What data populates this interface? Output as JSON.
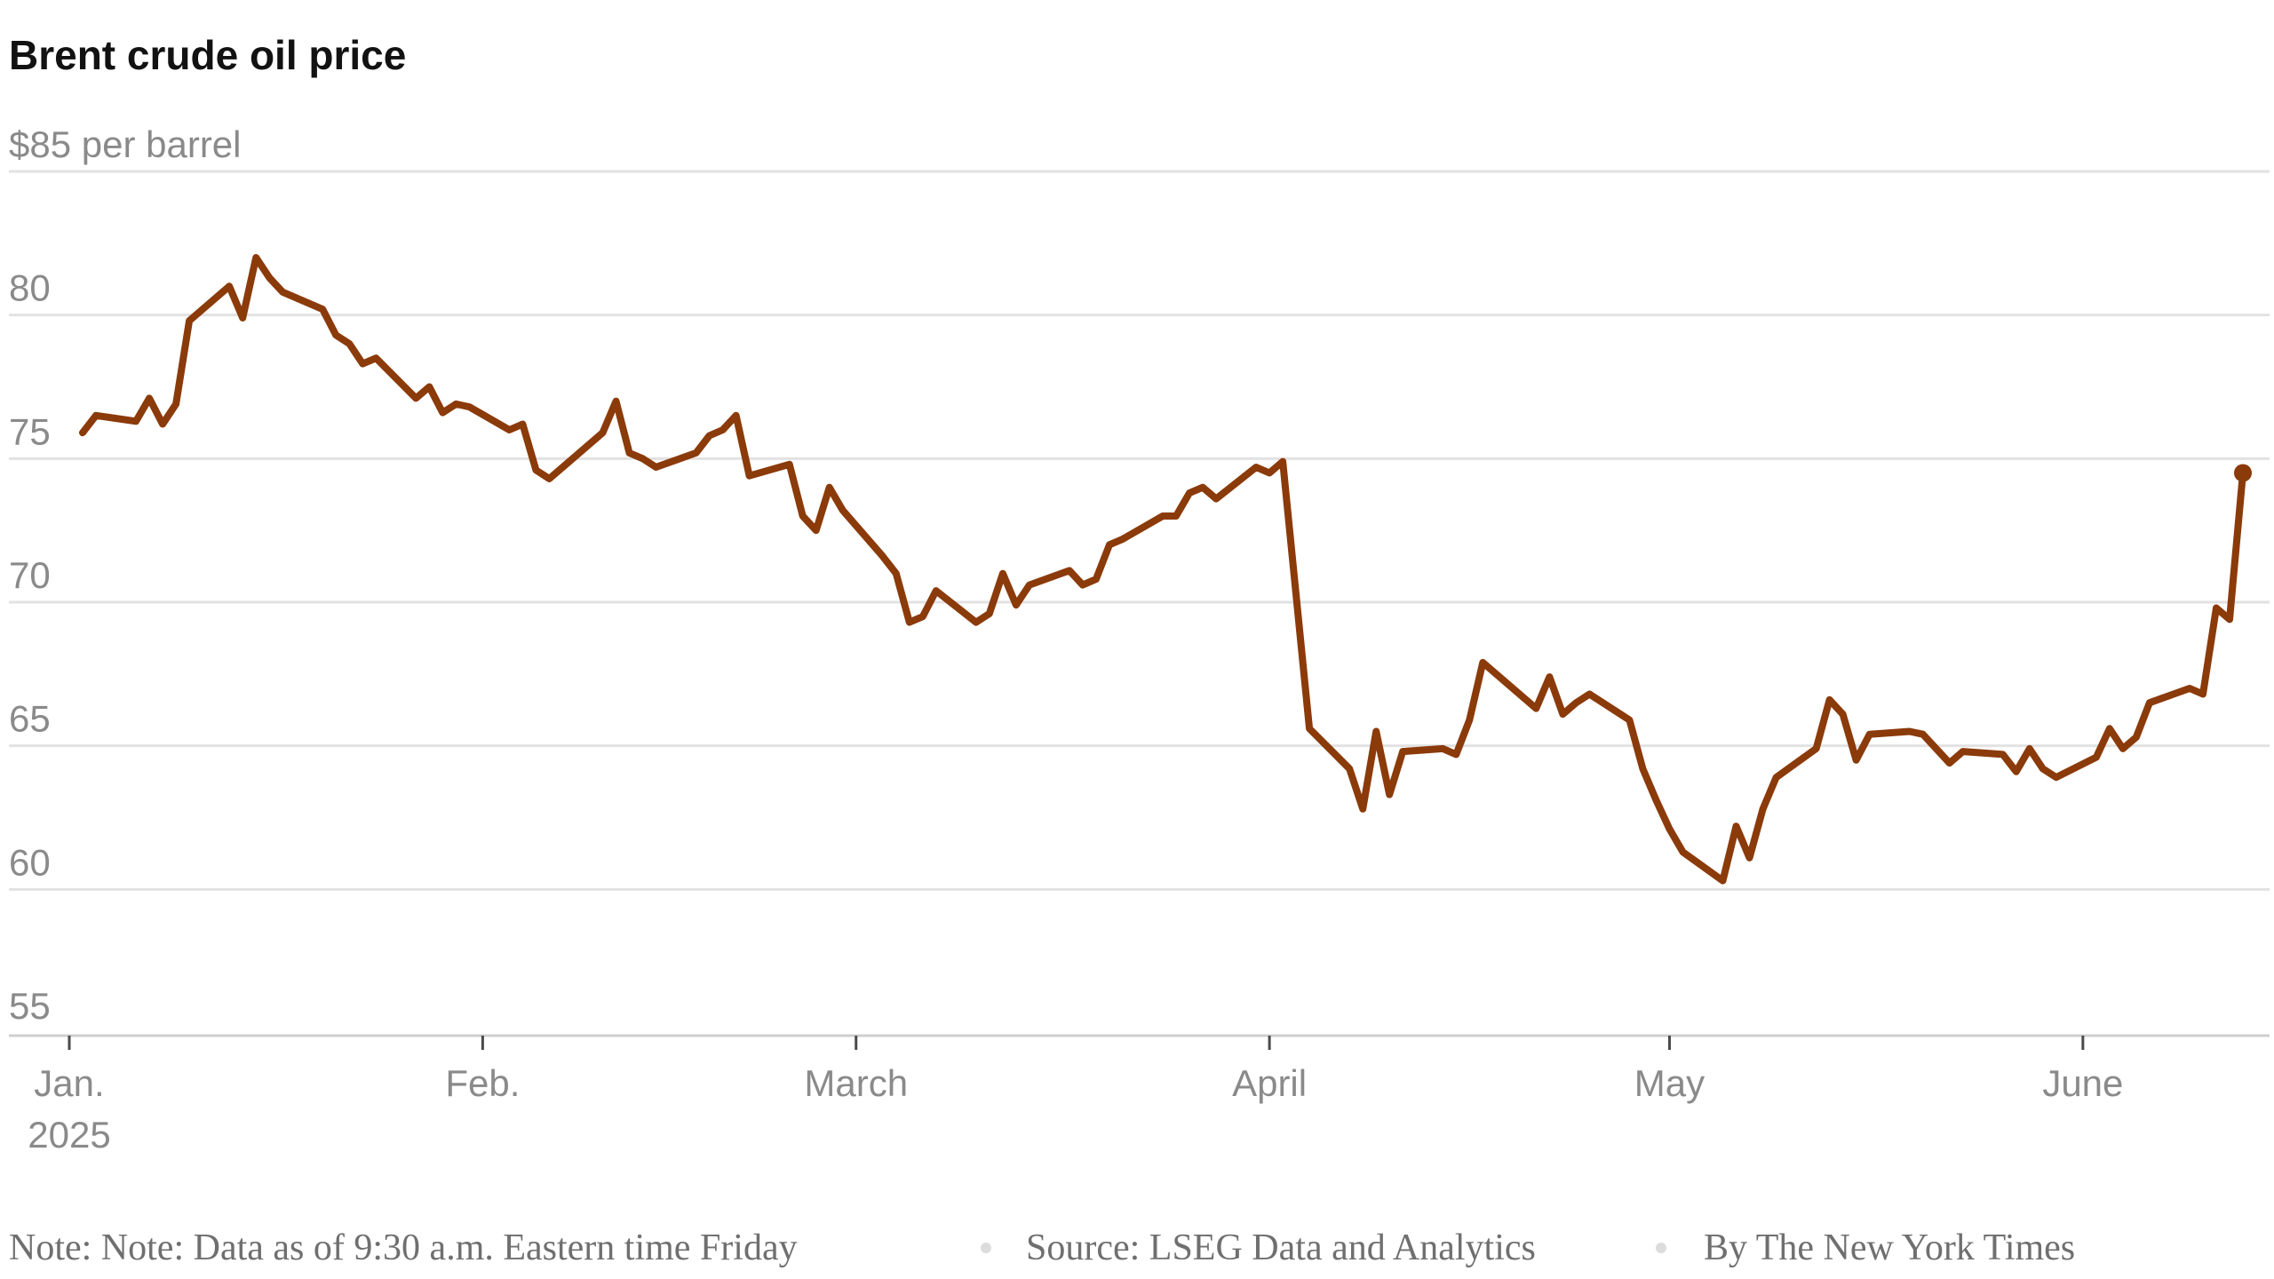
{
  "chart_data": {
    "type": "line",
    "title": "Brent crude oil price",
    "y_unit_label": "$85 per barrel",
    "ylim": [
      54,
      85
    ],
    "y_ticks": [
      {
        "value": 85,
        "label": "$85 per barrel"
      },
      {
        "value": 80,
        "label": "80"
      },
      {
        "value": 75,
        "label": "75"
      },
      {
        "value": 70,
        "label": "70"
      },
      {
        "value": 65,
        "label": "65"
      },
      {
        "value": 60,
        "label": "60"
      },
      {
        "value": 55,
        "label": "55"
      }
    ],
    "xlim": [
      "2025-01-01",
      "2025-06-14"
    ],
    "x_ticks": [
      {
        "date": "2025-01-01",
        "label": "Jan.",
        "label2": "2025"
      },
      {
        "date": "2025-02-01",
        "label": "Feb."
      },
      {
        "date": "2025-03-01",
        "label": "March"
      },
      {
        "date": "2025-04-01",
        "label": "April"
      },
      {
        "date": "2025-05-01",
        "label": "May"
      },
      {
        "date": "2025-06-01",
        "label": "June"
      }
    ],
    "grid": true,
    "line_color": "#8b3a0a",
    "series": [
      {
        "points": [
          [
            "2025-01-02",
            75.9
          ],
          [
            "2025-01-03",
            76.5
          ],
          [
            "2025-01-06",
            76.3
          ],
          [
            "2025-01-07",
            77.1
          ],
          [
            "2025-01-08",
            76.2
          ],
          [
            "2025-01-09",
            76.9
          ],
          [
            "2025-01-10",
            79.8
          ],
          [
            "2025-01-13",
            81.0
          ],
          [
            "2025-01-14",
            79.9
          ],
          [
            "2025-01-15",
            82.0
          ],
          [
            "2025-01-16",
            81.3
          ],
          [
            "2025-01-17",
            80.8
          ],
          [
            "2025-01-20",
            80.2
          ],
          [
            "2025-01-21",
            79.3
          ],
          [
            "2025-01-22",
            79.0
          ],
          [
            "2025-01-23",
            78.3
          ],
          [
            "2025-01-24",
            78.5
          ],
          [
            "2025-01-27",
            77.1
          ],
          [
            "2025-01-28",
            77.5
          ],
          [
            "2025-01-29",
            76.6
          ],
          [
            "2025-01-30",
            76.9
          ],
          [
            "2025-01-31",
            76.8
          ],
          [
            "2025-02-03",
            76.0
          ],
          [
            "2025-02-04",
            76.2
          ],
          [
            "2025-02-05",
            74.6
          ],
          [
            "2025-02-06",
            74.3
          ],
          [
            "2025-02-10",
            75.9
          ],
          [
            "2025-02-11",
            77.0
          ],
          [
            "2025-02-12",
            75.2
          ],
          [
            "2025-02-13",
            75.0
          ],
          [
            "2025-02-14",
            74.7
          ],
          [
            "2025-02-17",
            75.2
          ],
          [
            "2025-02-18",
            75.8
          ],
          [
            "2025-02-19",
            76.0
          ],
          [
            "2025-02-20",
            76.5
          ],
          [
            "2025-02-21",
            74.4
          ],
          [
            "2025-02-24",
            74.8
          ],
          [
            "2025-02-25",
            73.0
          ],
          [
            "2025-02-26",
            72.5
          ],
          [
            "2025-02-27",
            74.0
          ],
          [
            "2025-02-28",
            73.2
          ],
          [
            "2025-03-03",
            71.6
          ],
          [
            "2025-03-04",
            71.0
          ],
          [
            "2025-03-05",
            69.3
          ],
          [
            "2025-03-06",
            69.5
          ],
          [
            "2025-03-07",
            70.4
          ],
          [
            "2025-03-10",
            69.3
          ],
          [
            "2025-03-11",
            69.6
          ],
          [
            "2025-03-12",
            71.0
          ],
          [
            "2025-03-13",
            69.9
          ],
          [
            "2025-03-14",
            70.6
          ],
          [
            "2025-03-17",
            71.1
          ],
          [
            "2025-03-18",
            70.6
          ],
          [
            "2025-03-19",
            70.8
          ],
          [
            "2025-03-20",
            72.0
          ],
          [
            "2025-03-21",
            72.2
          ],
          [
            "2025-03-24",
            73.0
          ],
          [
            "2025-03-25",
            73.0
          ],
          [
            "2025-03-26",
            73.8
          ],
          [
            "2025-03-27",
            74.0
          ],
          [
            "2025-03-28",
            73.6
          ],
          [
            "2025-03-31",
            74.7
          ],
          [
            "2025-04-01",
            74.5
          ],
          [
            "2025-04-02",
            74.9
          ],
          [
            "2025-04-04",
            65.6
          ],
          [
            "2025-04-07",
            64.2
          ],
          [
            "2025-04-08",
            62.8
          ],
          [
            "2025-04-09",
            65.5
          ],
          [
            "2025-04-10",
            63.3
          ],
          [
            "2025-04-11",
            64.8
          ],
          [
            "2025-04-14",
            64.9
          ],
          [
            "2025-04-15",
            64.7
          ],
          [
            "2025-04-16",
            65.9
          ],
          [
            "2025-04-17",
            67.9
          ],
          [
            "2025-04-21",
            66.3
          ],
          [
            "2025-04-22",
            67.4
          ],
          [
            "2025-04-23",
            66.1
          ],
          [
            "2025-04-24",
            66.5
          ],
          [
            "2025-04-25",
            66.8
          ],
          [
            "2025-04-28",
            65.9
          ],
          [
            "2025-04-29",
            64.2
          ],
          [
            "2025-04-30",
            63.1
          ],
          [
            "2025-05-01",
            62.1
          ],
          [
            "2025-05-02",
            61.3
          ],
          [
            "2025-05-05",
            60.3
          ],
          [
            "2025-05-06",
            62.2
          ],
          [
            "2025-05-07",
            61.1
          ],
          [
            "2025-05-08",
            62.8
          ],
          [
            "2025-05-09",
            63.9
          ],
          [
            "2025-05-12",
            64.9
          ],
          [
            "2025-05-13",
            66.6
          ],
          [
            "2025-05-14",
            66.1
          ],
          [
            "2025-05-15",
            64.5
          ],
          [
            "2025-05-16",
            65.4
          ],
          [
            "2025-05-19",
            65.5
          ],
          [
            "2025-05-20",
            65.4
          ],
          [
            "2025-05-22",
            64.4
          ],
          [
            "2025-05-23",
            64.8
          ],
          [
            "2025-05-26",
            64.7
          ],
          [
            "2025-05-27",
            64.1
          ],
          [
            "2025-05-28",
            64.9
          ],
          [
            "2025-05-29",
            64.2
          ],
          [
            "2025-05-30",
            63.9
          ],
          [
            "2025-06-02",
            64.6
          ],
          [
            "2025-06-03",
            65.6
          ],
          [
            "2025-06-04",
            64.9
          ],
          [
            "2025-06-05",
            65.3
          ],
          [
            "2025-06-06",
            66.5
          ],
          [
            "2025-06-09",
            67.0
          ],
          [
            "2025-06-10",
            66.8
          ],
          [
            "2025-06-11",
            69.8
          ],
          [
            "2025-06-12",
            69.4
          ],
          [
            "2025-06-13",
            74.5
          ]
        ]
      }
    ]
  },
  "footer": {
    "note": "Note: Note: Data as of 9:30 a.m. Eastern time Friday",
    "source": "Source: LSEG Data and Analytics",
    "credit": "By The New York Times"
  }
}
